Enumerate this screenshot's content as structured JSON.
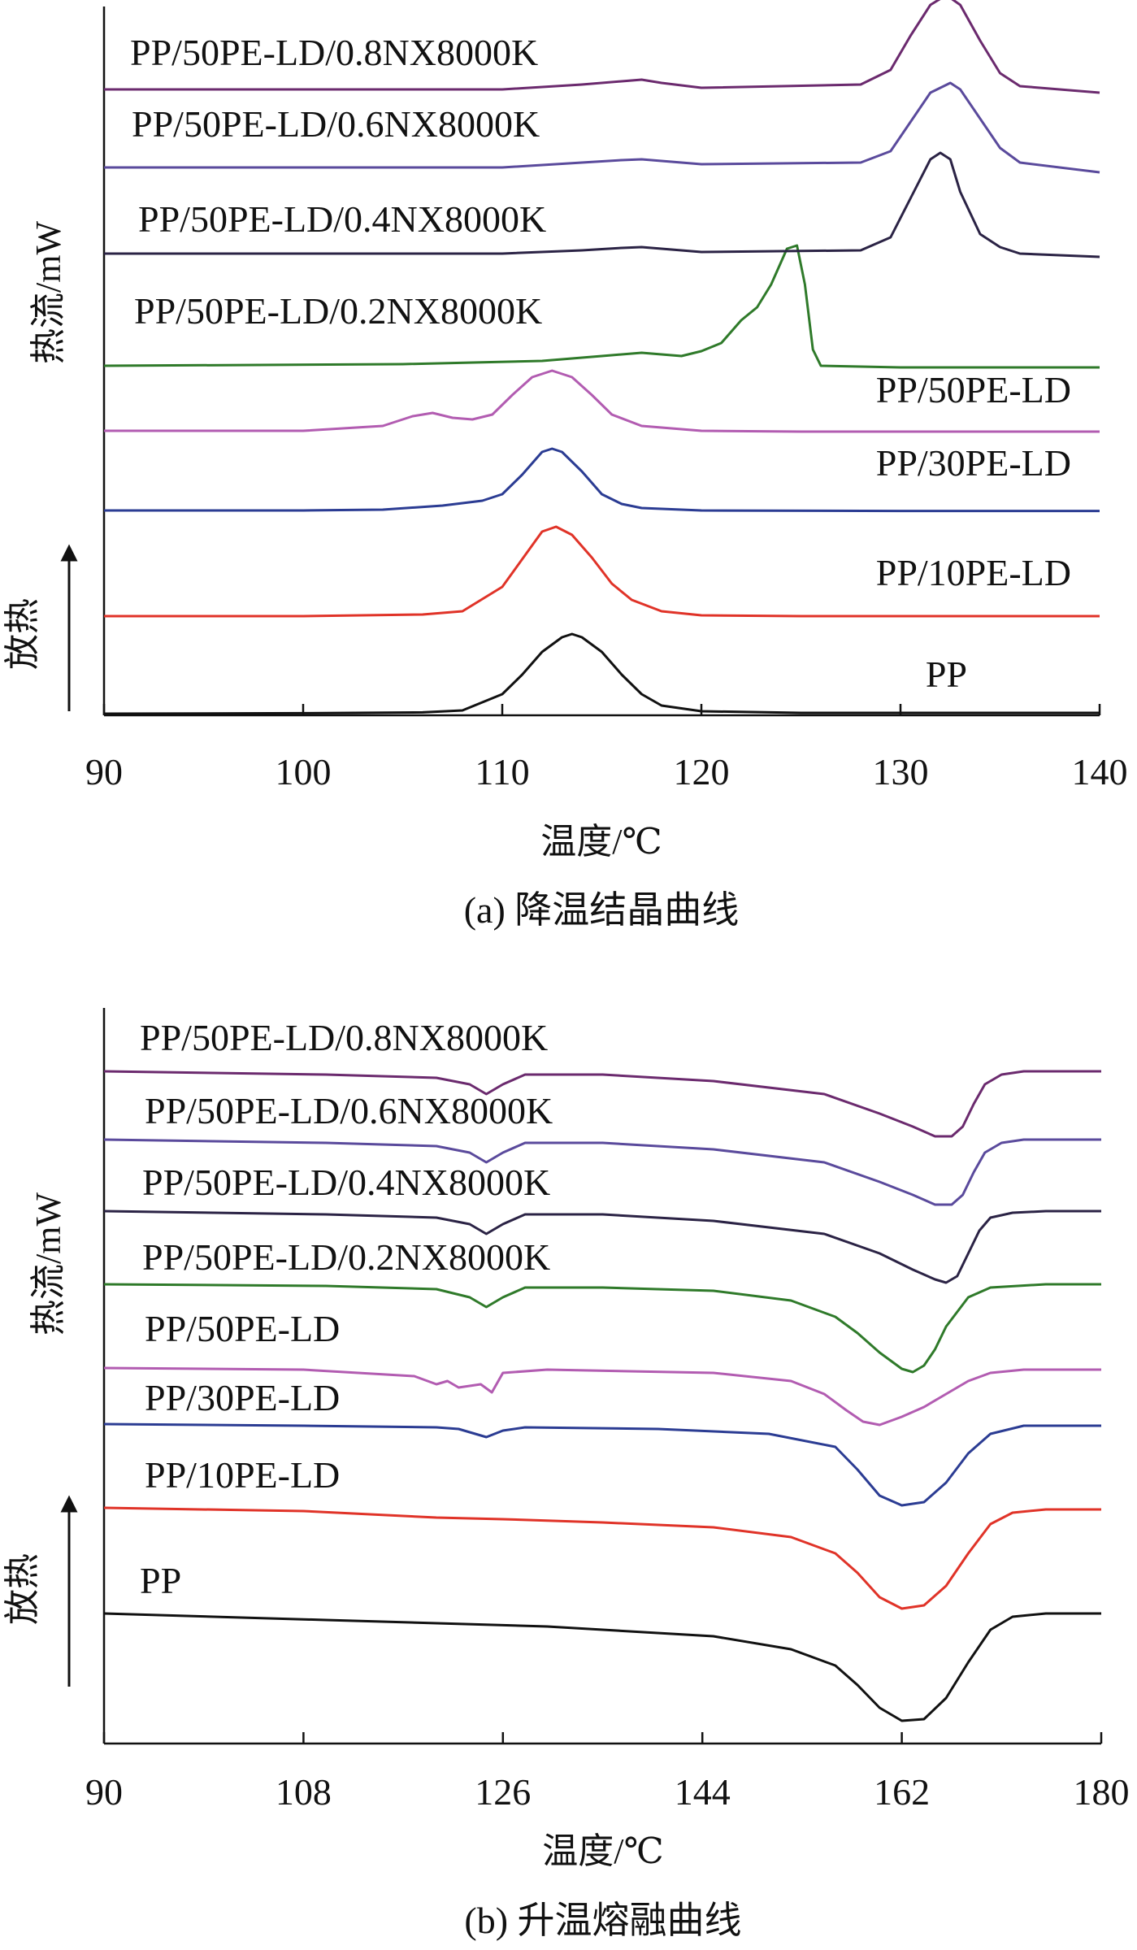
{
  "chart_data": [
    {
      "type": "line",
      "caption": "(a) 降温结晶曲线",
      "xlabel": "温度/℃",
      "ylabel": "热流/mW",
      "arrow_label": "放热",
      "xlim": [
        90,
        140
      ],
      "xticks": [
        90,
        100,
        110,
        120,
        130,
        140
      ],
      "grid": false,
      "series": [
        {
          "name": "PP",
          "color": "#111111",
          "x": [
            90,
            100,
            106,
            108,
            110,
            111,
            112,
            113,
            113.5,
            114,
            115,
            116,
            117,
            118,
            120,
            125,
            140
          ],
          "y": [
            0,
            0.3,
            0.8,
            2,
            12,
            24,
            38,
            47,
            49,
            47,
            38,
            24,
            12,
            5,
            1.5,
            0.5,
            0.5
          ]
        },
        {
          "name": "PP/10PE-LD",
          "color": "#e03328",
          "x": [
            90,
            100,
            106,
            108,
            110,
            111,
            112,
            112.7,
            113.5,
            114.5,
            115.5,
            116.5,
            118,
            120,
            125,
            140
          ],
          "y": [
            0,
            0,
            1,
            3,
            18,
            35,
            52,
            55,
            50,
            36,
            20,
            10,
            3,
            0.5,
            0,
            0
          ]
        },
        {
          "name": "PP/30PE-LD",
          "color": "#2b3c93",
          "x": [
            90,
            100,
            104,
            107,
            109,
            110,
            111,
            112,
            112.5,
            113,
            114,
            115,
            116,
            117,
            120,
            130,
            140
          ],
          "y": [
            0,
            0,
            0.5,
            3,
            6,
            10,
            22,
            36,
            38,
            36,
            24,
            10,
            4,
            1.5,
            0,
            -0.3,
            -0.3
          ]
        },
        {
          "name": "PP/50PE-LD",
          "color": "#b25cb1",
          "x": [
            90,
            100,
            104,
            105.5,
            106.5,
            107.5,
            108.5,
            109.5,
            110.5,
            111.5,
            112.5,
            113.5,
            114.5,
            115.5,
            117,
            120,
            125,
            140
          ],
          "y": [
            0,
            0,
            3,
            9,
            11,
            8,
            7,
            10,
            22,
            33,
            37,
            33,
            22,
            10,
            3,
            0,
            -0.5,
            -0.5
          ]
        },
        {
          "name": "PP/50PE-LD/0.2NX8000K",
          "color": "#2f7a2a",
          "x": [
            90,
            105,
            112,
            115,
            117,
            119,
            120,
            121,
            122,
            122.8,
            123.5,
            124.3,
            124.8,
            125.2,
            125.6,
            126,
            130,
            140
          ],
          "y": [
            0,
            1,
            3,
            6,
            8,
            6,
            9,
            14,
            28,
            36,
            50,
            72,
            74,
            50,
            10,
            0,
            -1,
            -1
          ]
        },
        {
          "name": "PP/50PE-LD/0.4NX8000K",
          "color": "#2b2345",
          "x": [
            90,
            100,
            110,
            114,
            116,
            117,
            118,
            120,
            128,
            129.5,
            130.5,
            131.5,
            132,
            132.5,
            133,
            134,
            135,
            136,
            140
          ],
          "y": [
            0,
            0,
            0,
            2,
            3.5,
            4,
            3,
            1,
            2,
            10,
            34,
            58,
            62,
            58,
            38,
            12,
            4,
            0,
            -2
          ]
        },
        {
          "name": "PP/50PE-LD/0.6NX8000K",
          "color": "#5a4a9c",
          "x": [
            90,
            100,
            110,
            114,
            116,
            117,
            118,
            120,
            128,
            129.5,
            130.5,
            131.5,
            132.5,
            133,
            134,
            135,
            136,
            140
          ],
          "y": [
            0,
            0,
            0,
            3,
            4.5,
            5,
            4,
            2,
            3,
            10,
            28,
            46,
            52,
            48,
            30,
            12,
            3,
            -3
          ]
        },
        {
          "name": "PP/50PE-LD/0.8NX8000K",
          "color": "#6b2a6e",
          "x": [
            90,
            100,
            110,
            114,
            116,
            117,
            118,
            120,
            128,
            129.5,
            130.5,
            131.5,
            132.3,
            133,
            134,
            135,
            136,
            140
          ],
          "y": [
            0,
            0,
            0,
            3,
            5,
            6,
            4,
            1,
            3,
            12,
            33,
            52,
            58,
            52,
            30,
            10,
            2,
            -2
          ]
        }
      ]
    },
    {
      "type": "line",
      "caption": "(b) 升温熔融曲线",
      "xlabel": "温度/℃",
      "ylabel": "热流/mW",
      "arrow_label": "放热",
      "xlim": [
        90,
        180
      ],
      "xticks": [
        90,
        108,
        126,
        144,
        162,
        180
      ],
      "grid": false,
      "series": [
        {
          "name": "PP",
          "color": "#111111",
          "x": [
            90,
            110,
            130,
            145,
            152,
            156,
            158,
            160,
            162,
            164,
            166,
            168,
            170,
            172,
            175,
            180
          ],
          "y": [
            0,
            -4,
            -8,
            -14,
            -22,
            -32,
            -44,
            -58,
            -66,
            -65,
            -52,
            -30,
            -10,
            -2,
            0,
            0
          ]
        },
        {
          "name": "PP/10PE-LD",
          "color": "#e03328",
          "x": [
            90,
            108,
            120,
            126,
            135,
            145,
            152,
            156,
            158,
            160,
            162,
            164,
            166,
            168,
            170,
            172,
            175,
            180
          ],
          "y": [
            0,
            -2,
            -6,
            -7,
            -9,
            -12,
            -18,
            -28,
            -40,
            -55,
            -62,
            -60,
            -48,
            -28,
            -10,
            -3,
            -1,
            -1
          ]
        },
        {
          "name": "PP/30PE-LD",
          "color": "#2b3c93",
          "x": [
            90,
            108,
            120,
            122,
            124.5,
            126,
            128,
            140,
            150,
            156,
            158,
            160,
            162,
            164,
            166,
            168,
            170,
            173,
            180
          ],
          "y": [
            0,
            -1,
            -2,
            -3,
            -8,
            -4,
            -2,
            -3,
            -6,
            -14,
            -28,
            -44,
            -50,
            -48,
            -36,
            -18,
            -6,
            -1,
            -1
          ]
        },
        {
          "name": "PP/50PE-LD",
          "color": "#b25cb1",
          "x": [
            90,
            108,
            118,
            120,
            121,
            122,
            124,
            125,
            126,
            130,
            145,
            152,
            155,
            157,
            158.5,
            160,
            162,
            164,
            166,
            168,
            170,
            173,
            180
          ],
          "y": [
            0,
            -1,
            -5,
            -10,
            -8,
            -12,
            -10,
            -15,
            -3,
            -1,
            -3,
            -8,
            -16,
            -26,
            -33,
            -35,
            -30,
            -24,
            -16,
            -8,
            -3,
            -1,
            -1
          ]
        },
        {
          "name": "PP/50PE-LD/0.2NX8000K",
          "color": "#2f7a2a",
          "x": [
            90,
            110,
            120,
            123,
            124.5,
            126,
            128,
            135,
            145,
            152,
            156,
            158,
            160,
            162,
            163,
            164,
            165,
            166,
            168,
            170,
            175,
            180
          ],
          "y": [
            0,
            -1,
            -3,
            -8,
            -14,
            -8,
            -2,
            -2,
            -4,
            -10,
            -20,
            -30,
            -42,
            -52,
            -54,
            -50,
            -40,
            -26,
            -8,
            -2,
            0,
            0
          ]
        },
        {
          "name": "PP/50PE-LD/0.4NX8000K",
          "color": "#2b2345",
          "x": [
            90,
            110,
            120,
            123,
            124.5,
            126,
            128,
            135,
            145,
            155,
            160,
            163,
            165,
            166,
            167,
            168,
            169,
            170,
            172,
            175,
            180
          ],
          "y": [
            0,
            -2,
            -4,
            -8,
            -14,
            -8,
            -2,
            -2,
            -6,
            -14,
            -26,
            -36,
            -42,
            -44,
            -40,
            -26,
            -12,
            -4,
            -1,
            0,
            0
          ]
        },
        {
          "name": "PP/50PE-LD/0.6NX8000K",
          "color": "#5a4a9c",
          "x": [
            90,
            110,
            120,
            123,
            124.5,
            126,
            128,
            135,
            145,
            155,
            160,
            163,
            165,
            166.5,
            167.5,
            168.5,
            169.5,
            171,
            173,
            180
          ],
          "y": [
            0,
            -2,
            -4,
            -8,
            -14,
            -8,
            -2,
            -2,
            -6,
            -14,
            -26,
            -34,
            -40,
            -40,
            -34,
            -20,
            -8,
            -2,
            0,
            0
          ]
        },
        {
          "name": "PP/50PE-LD/0.8NX8000K",
          "color": "#6b2a6e",
          "x": [
            90,
            110,
            120,
            123,
            124.5,
            126,
            128,
            135,
            145,
            155,
            160,
            163,
            165,
            166.5,
            167.5,
            168.5,
            169.5,
            171,
            173,
            180
          ],
          "y": [
            0,
            -2,
            -4,
            -8,
            -14,
            -8,
            -2,
            -2,
            -6,
            -14,
            -26,
            -34,
            -40,
            -40,
            -34,
            -20,
            -8,
            -2,
            0,
            0
          ]
        }
      ]
    }
  ]
}
